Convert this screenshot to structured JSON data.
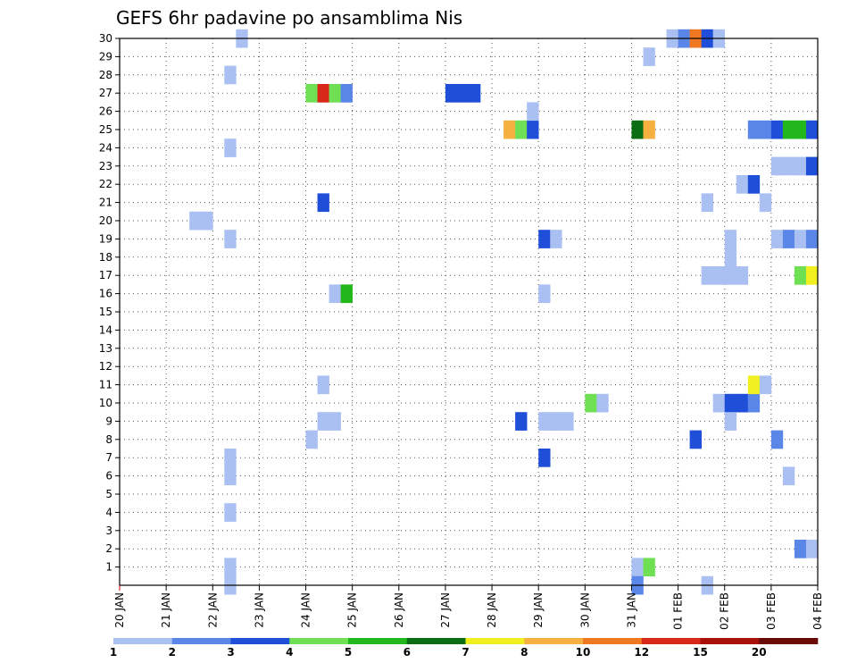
{
  "chart_data": {
    "type": "heatmap",
    "title": "GEFS 6hr padavine po ansamblima Nis",
    "x_tick_labels": [
      "20 JAN",
      "21 JAN",
      "22 JAN",
      "23 JAN",
      "24 JAN",
      "25 JAN",
      "26 JAN",
      "27 JAN",
      "28 JAN",
      "29 JAN",
      "30 JAN",
      "31 JAN",
      "01 FEB",
      "02 FEB",
      "03 FEB",
      "04 FEB"
    ],
    "y_tick_labels": [
      "1",
      "2",
      "3",
      "4",
      "5",
      "6",
      "7",
      "8",
      "9",
      "10",
      "11",
      "12",
      "13",
      "14",
      "15",
      "16",
      "17",
      "18",
      "19",
      "20",
      "21",
      "22",
      "23",
      "24",
      "25",
      "26",
      "27",
      "28",
      "29",
      "30"
    ],
    "x_range_days": [
      0,
      15
    ],
    "y_range": [
      0,
      30
    ],
    "grid": true,
    "colorbar": {
      "labels": [
        "1",
        "2",
        "3",
        "4",
        "5",
        "6",
        "7",
        "8",
        "10",
        "12",
        "15",
        "20"
      ],
      "colors": [
        "#aabff2",
        "#5a86e8",
        "#1f4fd9",
        "#6fe054",
        "#22b81c",
        "#0c6e14",
        "#f0f020",
        "#f5b040",
        "#f07820",
        "#d82818",
        "#a81008",
        "#6a0808"
      ]
    },
    "cells": [
      {
        "x": 2.25,
        "y": 1,
        "c": 0
      },
      {
        "x": 2.25,
        "y": 0,
        "c": 0
      },
      {
        "x": 2.25,
        "y": 4,
        "c": 0
      },
      {
        "x": 2.25,
        "y": 6,
        "c": 0
      },
      {
        "x": 2.25,
        "y": 7,
        "c": 0
      },
      {
        "x": 2.25,
        "y": 19,
        "c": 0
      },
      {
        "x": 2.25,
        "y": 24,
        "c": 0
      },
      {
        "x": 2.25,
        "y": 28,
        "c": 0
      },
      {
        "x": 2.5,
        "y": 30,
        "c": 0
      },
      {
        "x": 1.5,
        "y": 20,
        "c": 0
      },
      {
        "x": 1.75,
        "y": 20,
        "c": 0
      },
      {
        "x": 4.0,
        "y": 27,
        "c": 3
      },
      {
        "x": 4.25,
        "y": 27,
        "c": 9
      },
      {
        "x": 4.5,
        "y": 27,
        "c": 3
      },
      {
        "x": 4.75,
        "y": 27,
        "c": 1
      },
      {
        "x": 4.25,
        "y": 21,
        "c": 2
      },
      {
        "x": 4.5,
        "y": 16,
        "c": 0
      },
      {
        "x": 4.75,
        "y": 16,
        "c": 4
      },
      {
        "x": 4.25,
        "y": 11,
        "c": 0
      },
      {
        "x": 4.25,
        "y": 9,
        "c": 0
      },
      {
        "x": 4.5,
        "y": 9,
        "c": 0
      },
      {
        "x": 4.0,
        "y": 8,
        "c": 0
      },
      {
        "x": 7.0,
        "y": 27,
        "c": 2
      },
      {
        "x": 7.25,
        "y": 27,
        "c": 2
      },
      {
        "x": 7.5,
        "y": 27,
        "c": 2
      },
      {
        "x": 8.25,
        "y": 25,
        "c": 7
      },
      {
        "x": 8.5,
        "y": 25,
        "c": 3
      },
      {
        "x": 8.75,
        "y": 25,
        "c": 2
      },
      {
        "x": 8.75,
        "y": 26,
        "c": 0
      },
      {
        "x": 9.0,
        "y": 19,
        "c": 2
      },
      {
        "x": 9.25,
        "y": 19,
        "c": 0
      },
      {
        "x": 9.0,
        "y": 16,
        "c": 0
      },
      {
        "x": 8.5,
        "y": 9,
        "c": 2
      },
      {
        "x": 9.0,
        "y": 9,
        "c": 0
      },
      {
        "x": 9.25,
        "y": 9,
        "c": 0
      },
      {
        "x": 9.5,
        "y": 9,
        "c": 0
      },
      {
        "x": 9.0,
        "y": 7,
        "c": 2
      },
      {
        "x": 10.0,
        "y": 10,
        "c": 3
      },
      {
        "x": 10.25,
        "y": 10,
        "c": 0
      },
      {
        "x": 11.0,
        "y": 1,
        "c": 0
      },
      {
        "x": 11.25,
        "y": 1,
        "c": 3
      },
      {
        "x": 11.0,
        "y": 0,
        "c": 1
      },
      {
        "x": 11.0,
        "y": 25,
        "c": 5
      },
      {
        "x": 11.25,
        "y": 25,
        "c": 7
      },
      {
        "x": 11.25,
        "y": 29,
        "c": 0
      },
      {
        "x": 11.75,
        "y": 30,
        "c": 0
      },
      {
        "x": 12.0,
        "y": 30,
        "c": 1
      },
      {
        "x": 12.25,
        "y": 30,
        "c": 8
      },
      {
        "x": 12.5,
        "y": 30,
        "c": 2
      },
      {
        "x": 12.75,
        "y": 30,
        "c": 0
      },
      {
        "x": 12.5,
        "y": 17,
        "c": 0
      },
      {
        "x": 12.75,
        "y": 17,
        "c": 0
      },
      {
        "x": 12.5,
        "y": 21,
        "c": 0
      },
      {
        "x": 12.25,
        "y": 8,
        "c": 2
      },
      {
        "x": 12.5,
        "y": 0,
        "c": 0
      },
      {
        "x": 13.0,
        "y": 18,
        "c": 0
      },
      {
        "x": 13.0,
        "y": 17,
        "c": 0
      },
      {
        "x": 13.25,
        "y": 17,
        "c": 0
      },
      {
        "x": 13.0,
        "y": 19,
        "c": 0
      },
      {
        "x": 12.75,
        "y": 10,
        "c": 0
      },
      {
        "x": 13.0,
        "y": 10,
        "c": 2
      },
      {
        "x": 13.25,
        "y": 10,
        "c": 2
      },
      {
        "x": 13.5,
        "y": 10,
        "c": 1
      },
      {
        "x": 13.0,
        "y": 9,
        "c": 0
      },
      {
        "x": 13.5,
        "y": 11,
        "c": 6
      },
      {
        "x": 13.75,
        "y": 11,
        "c": 0
      },
      {
        "x": 13.25,
        "y": 22,
        "c": 0
      },
      {
        "x": 13.5,
        "y": 22,
        "c": 2
      },
      {
        "x": 13.75,
        "y": 21,
        "c": 0
      },
      {
        "x": 13.5,
        "y": 25,
        "c": 1
      },
      {
        "x": 13.75,
        "y": 25,
        "c": 1
      },
      {
        "x": 14.0,
        "y": 25,
        "c": 2
      },
      {
        "x": 14.25,
        "y": 25,
        "c": 4
      },
      {
        "x": 14.5,
        "y": 25,
        "c": 4
      },
      {
        "x": 14.75,
        "y": 25,
        "c": 2
      },
      {
        "x": 14.0,
        "y": 23,
        "c": 0
      },
      {
        "x": 14.25,
        "y": 23,
        "c": 0
      },
      {
        "x": 14.5,
        "y": 23,
        "c": 0
      },
      {
        "x": 14.75,
        "y": 23,
        "c": 2
      },
      {
        "x": 14.0,
        "y": 19,
        "c": 0
      },
      {
        "x": 14.25,
        "y": 19,
        "c": 1
      },
      {
        "x": 14.5,
        "y": 19,
        "c": 0
      },
      {
        "x": 14.75,
        "y": 19,
        "c": 1
      },
      {
        "x": 14.5,
        "y": 17,
        "c": 3
      },
      {
        "x": 14.75,
        "y": 17,
        "c": 6
      },
      {
        "x": 14.0,
        "y": 8,
        "c": 1
      },
      {
        "x": 14.25,
        "y": 6,
        "c": 0
      },
      {
        "x": 14.5,
        "y": 2,
        "c": 1
      },
      {
        "x": 14.75,
        "y": 2,
        "c": 0
      }
    ]
  }
}
